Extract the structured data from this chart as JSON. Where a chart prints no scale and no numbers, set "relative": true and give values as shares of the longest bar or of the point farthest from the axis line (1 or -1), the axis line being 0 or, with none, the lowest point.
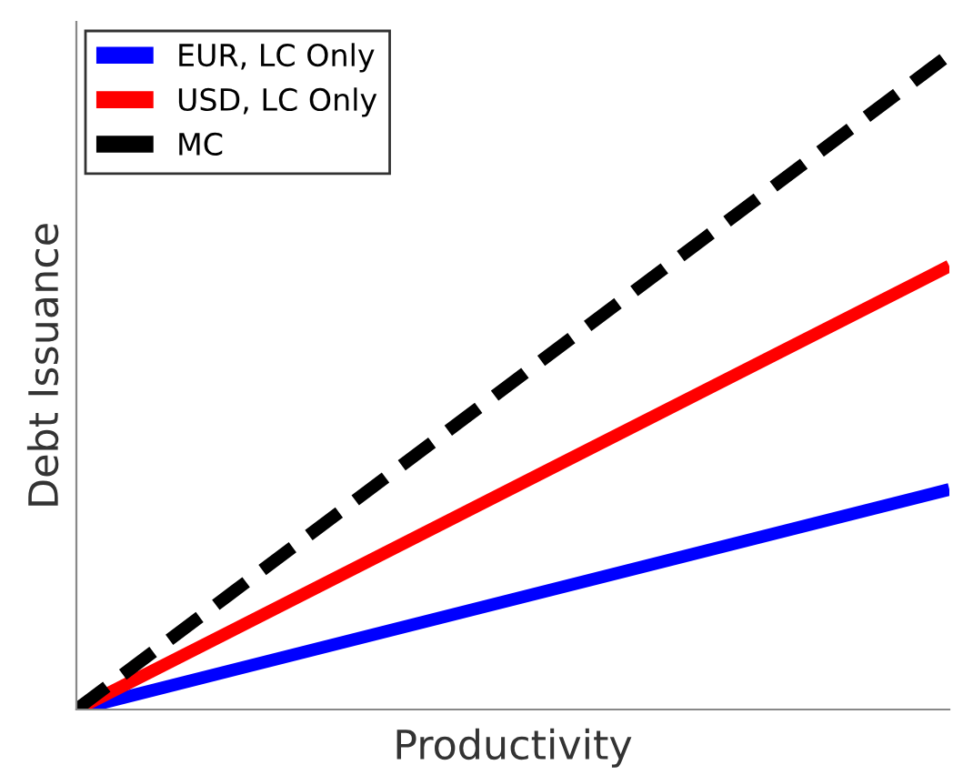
{
  "chart_data": {
    "type": "line",
    "xlabel": "Productivity",
    "ylabel": "Debt Issuance",
    "relative": true,
    "categories": [
      null,
      null
    ],
    "series": [
      {
        "name": "EUR, LC Only",
        "color": "#0000ff",
        "values": [
          0,
          0.336
        ],
        "line_style": "solid"
      },
      {
        "name": "USD, LC Only",
        "color": "#ff0000",
        "values": [
          0,
          0.677
        ],
        "line_style": "solid"
      },
      {
        "name": "MC",
        "color": "#000000",
        "values": [
          0,
          1
        ],
        "line_style": "dashed"
      }
    ],
    "legend": "top left",
    "marker": "none"
  }
}
